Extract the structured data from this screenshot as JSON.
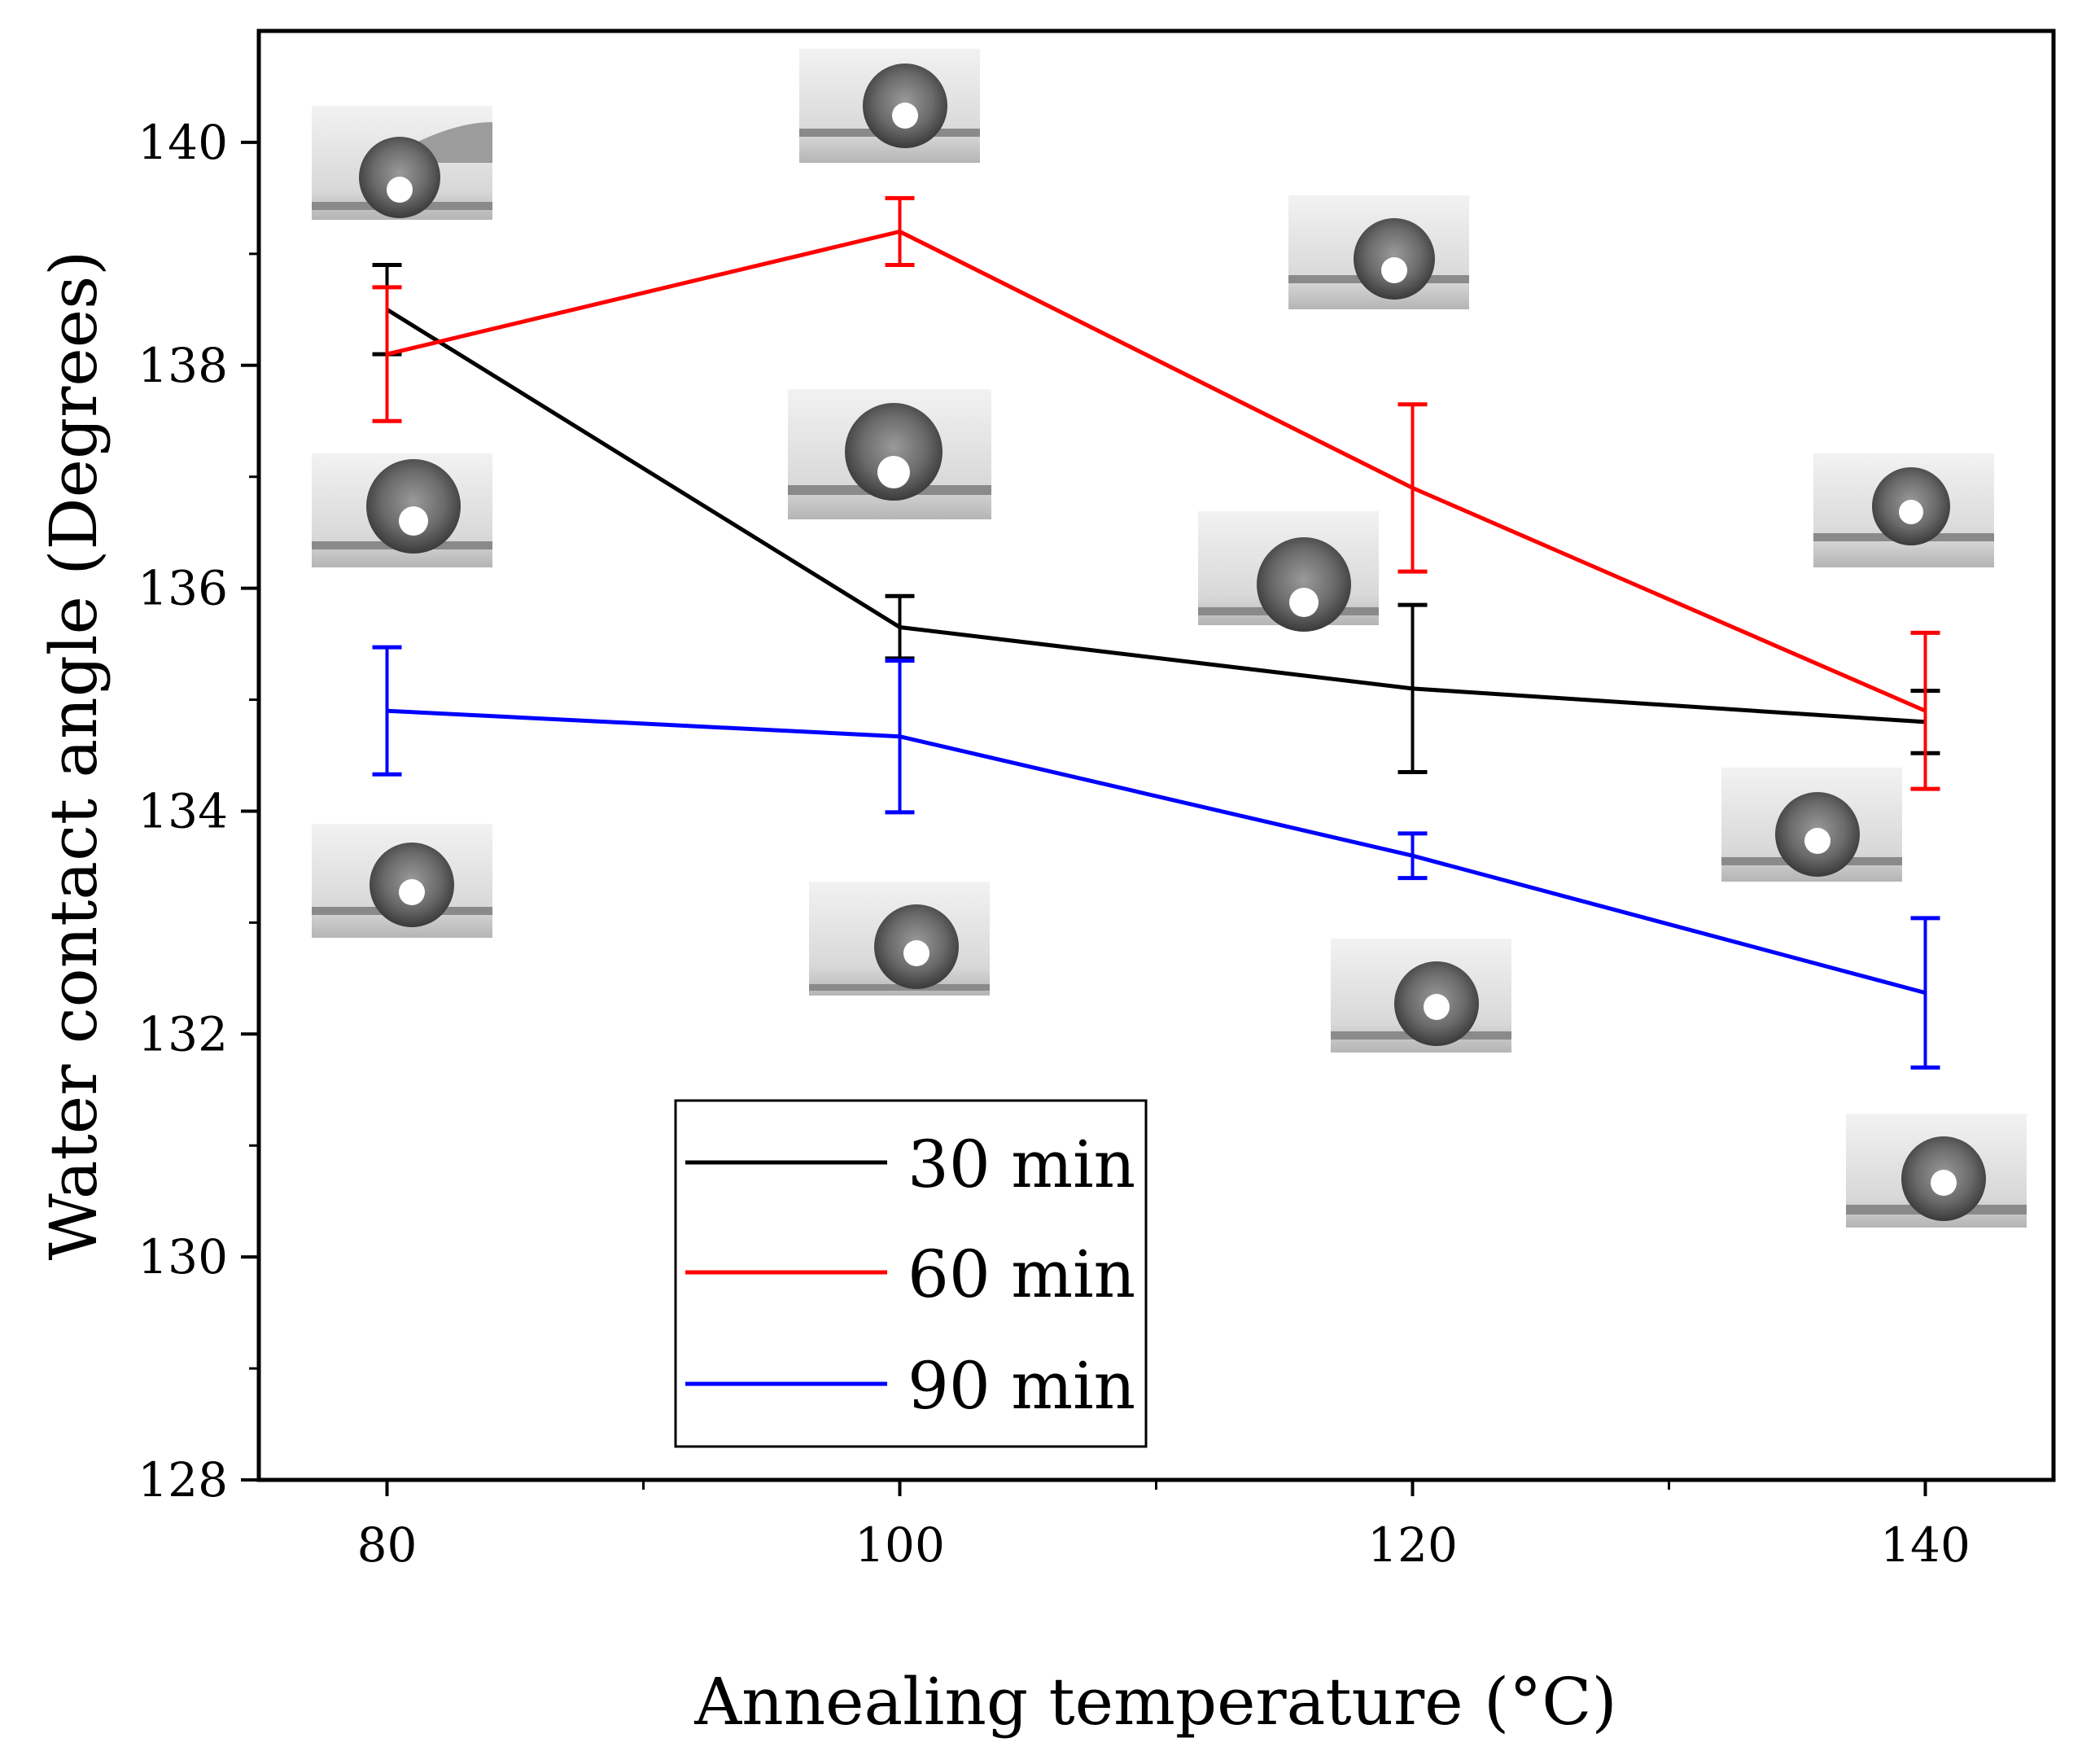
{
  "chart_data": {
    "type": "line",
    "xlabel": "Annealing temperature (°C)",
    "ylabel": "Water contact angle (Degrees)",
    "x": [
      80,
      100,
      120,
      140
    ],
    "xlim": [
      75,
      145
    ],
    "ylim": [
      128,
      141
    ],
    "xticks": [
      80,
      100,
      120,
      140
    ],
    "xticks_minor": [
      90,
      110,
      130
    ],
    "yticks": [
      128,
      130,
      132,
      134,
      136,
      138,
      140
    ],
    "x_tick_labels": [
      "80",
      "100",
      "120",
      "140"
    ],
    "y_tick_labels": [
      "128",
      "130",
      "132",
      "134",
      "136",
      "138",
      "140"
    ],
    "grid": false,
    "legend_position": "bottom-center",
    "series": [
      {
        "name": "30 min",
        "color": "#000000",
        "values": [
          138.5,
          135.65,
          135.1,
          134.8
        ],
        "errors": [
          0.4,
          0.28,
          0.75,
          0.28
        ]
      },
      {
        "name": "60 min",
        "color": "#ff0000",
        "values": [
          138.1,
          139.2,
          136.9,
          134.9
        ],
        "errors": [
          0.6,
          0.3,
          0.75,
          0.7
        ]
      },
      {
        "name": "90 min",
        "color": "#0000ff",
        "values": [
          134.9,
          134.67,
          133.6,
          132.37
        ],
        "errors": [
          0.57,
          0.68,
          0.2,
          0.67
        ]
      }
    ],
    "annotations": [
      {
        "type": "droplet-photo",
        "x": 80,
        "y": 139.6
      },
      {
        "type": "droplet-photo",
        "x": 100,
        "y": 140.3
      },
      {
        "type": "droplet-photo",
        "x": 140,
        "y": 131.9
      }
    ]
  }
}
